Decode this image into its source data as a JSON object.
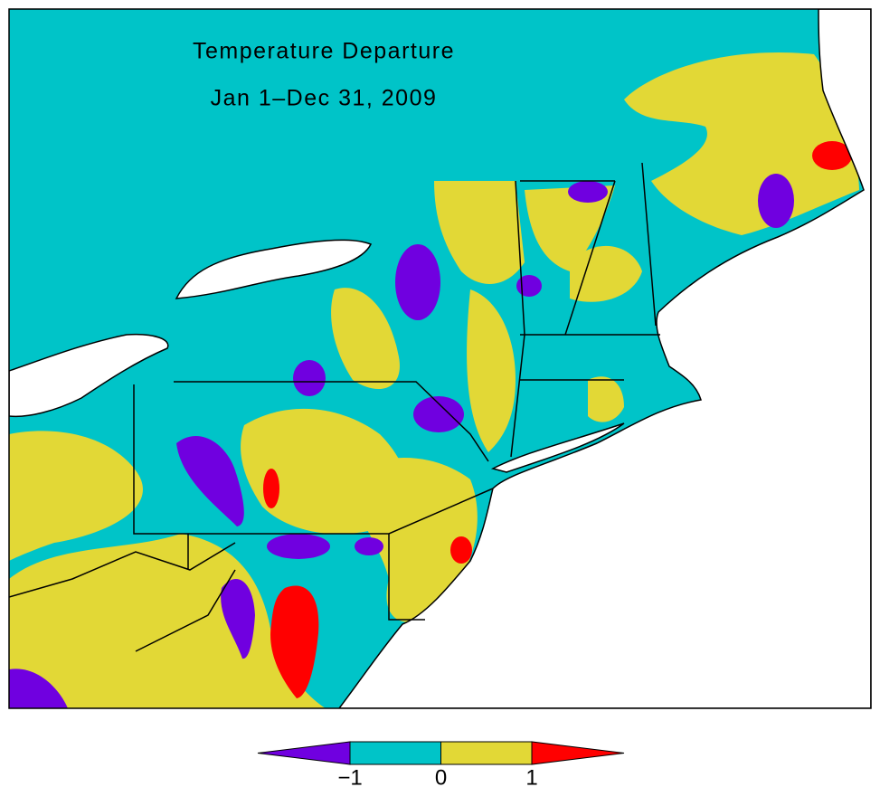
{
  "title": "Temperature Departure",
  "subtitle": "Jan 1–Dec 31, 2009",
  "legend": {
    "clim": [
      -1,
      1
    ],
    "ticks": [
      {
        "value": -1,
        "label": "−1"
      },
      0,
      1
    ],
    "colors": [
      "#7000e0",
      "#00c4c8",
      "#e2d836",
      "#ff0000"
    ]
  }
}
